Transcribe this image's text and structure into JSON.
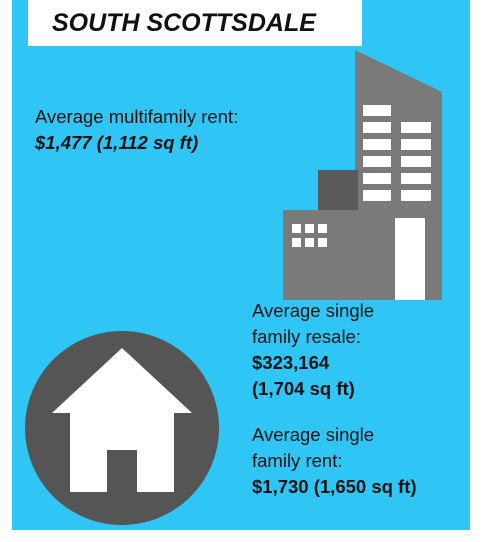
{
  "title": "SOUTH SCOTTSDALE",
  "multifamily_rent": {
    "label_lines": [
      "Average multifamily rent:"
    ],
    "value_lines": [
      "$1,477 (1,112 sq ft)"
    ]
  },
  "single_family_resale": {
    "label_lines": [
      "Average single",
      "family resale:"
    ],
    "value_lines": [
      "$323,164",
      "(1,704 sq ft)"
    ]
  },
  "single_family_rent": {
    "label_lines": [
      "Average single",
      "family rent:"
    ],
    "value_lines": [
      "$1,730 (1,650 sq ft)"
    ]
  }
}
